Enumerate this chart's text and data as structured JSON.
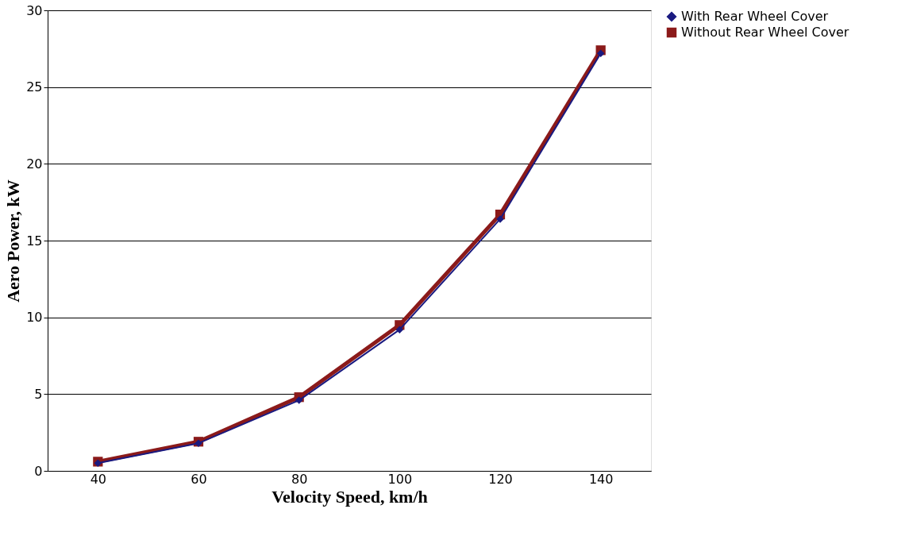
{
  "chart_data": {
    "type": "line",
    "xlabel": "Velocity Speed, km/h",
    "ylabel": "Aero Power, kW",
    "categories": [
      "40",
      "60",
      "80",
      "100",
      "120",
      "140"
    ],
    "series": [
      {
        "name": "With Rear Wheel Cover",
        "color": "#1a1a80",
        "marker": "diamond",
        "values": [
          0.5,
          1.8,
          4.6,
          9.2,
          16.4,
          27.2
        ]
      },
      {
        "name": "Without Rear Wheel Cover",
        "color": "#8b1a1a",
        "marker": "square",
        "values": [
          0.6,
          1.9,
          4.8,
          9.5,
          16.7,
          27.4
        ]
      }
    ],
    "ylim": [
      0,
      30
    ],
    "yticks": [
      0,
      5,
      10,
      15,
      20,
      25,
      30
    ],
    "grid": "y",
    "legend": "right"
  }
}
